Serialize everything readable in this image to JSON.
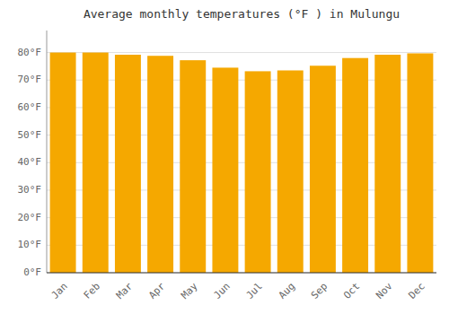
{
  "chart_data": {
    "type": "bar",
    "title": "Average monthly temperatures (°F ) in Mulungu",
    "categories": [
      "Jan",
      "Feb",
      "Mar",
      "Apr",
      "May",
      "Jun",
      "Jul",
      "Aug",
      "Sep",
      "Oct",
      "Nov",
      "Dec"
    ],
    "values": [
      80.0,
      80.0,
      79.2,
      78.8,
      77.2,
      74.5,
      73.2,
      73.5,
      75.2,
      78.0,
      79.2,
      79.7
    ],
    "color": "#F5A800",
    "ylim": [
      0,
      88
    ],
    "yticks": [
      {
        "value": 0,
        "label": "0°F"
      },
      {
        "value": 10,
        "label": "10°F"
      },
      {
        "value": 20,
        "label": "20°F"
      },
      {
        "value": 30,
        "label": "30°F"
      },
      {
        "value": 40,
        "label": "40°F"
      },
      {
        "value": 50,
        "label": "50°F"
      },
      {
        "value": 60,
        "label": "60°F"
      },
      {
        "value": 70,
        "label": "70°F"
      },
      {
        "value": 80,
        "label": "80°F"
      }
    ],
    "grid": true
  }
}
